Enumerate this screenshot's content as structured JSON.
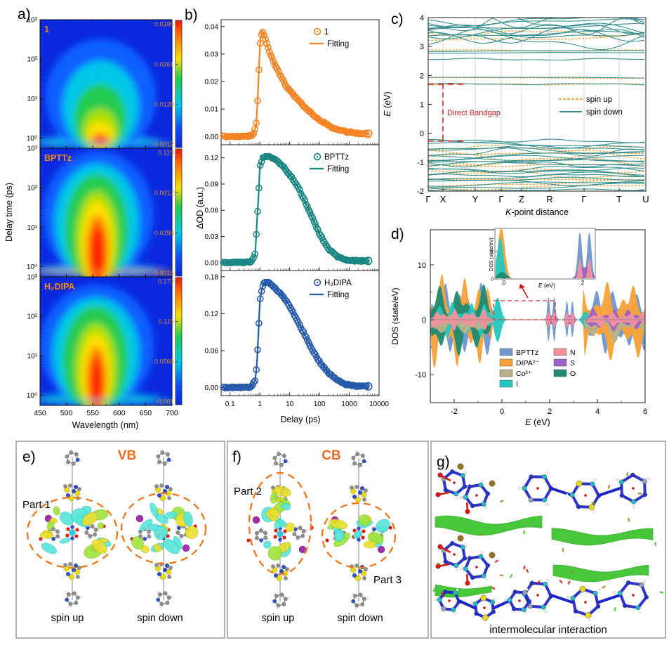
{
  "figure": {
    "letters": {
      "a": "a)",
      "b": "b)",
      "c": "c)",
      "d": "d)",
      "e": "e)",
      "f": "f)",
      "g": "g)"
    }
  },
  "colors": {
    "accent_orange": "#ff8a00",
    "annotation_red": "#cc2222",
    "heat_background": "#0a28e0"
  },
  "chart_data": [
    {
      "id": "a",
      "type": "heatmap",
      "xlabel": "Wavelength (nm)",
      "ylabel": "Delay time (ps)",
      "x_ticks": [
        450,
        500,
        550,
        600,
        650,
        700
      ],
      "y_ticks": [
        "10⁰",
        "10¹",
        "10²",
        "10³"
      ],
      "colormap": [
        "#0a28e0",
        "#00c8e8",
        "#20cc50",
        "#ffe000",
        "#ff8000",
        "#ff2000"
      ],
      "signal_center_nm": 563,
      "panels": [
        {
          "title": "1",
          "colorbar_ticks": [
            "0.0396",
            "0.0261",
            "0.0125",
            "-0.0012"
          ]
        },
        {
          "title": "BPTTz",
          "colorbar_ticks": [
            "0.123",
            "0.0812",
            "0.0398",
            "-0.0015"
          ]
        },
        {
          "title": "H₂DIPA",
          "colorbar_ticks": [
            "0.173",
            "0.115",
            "0.0568",
            "-0.001"
          ]
        }
      ]
    },
    {
      "id": "b",
      "type": "scatter-line",
      "xlabel": "Delay (ps)",
      "ylabel": "ΔOD (a.u.)",
      "x_ticks": [
        "0.1",
        "1",
        "10",
        "100",
        "1000",
        "10000"
      ],
      "panels": [
        {
          "name": "1",
          "fit_label": "Fitting",
          "color": "#f58220",
          "y_ticks": [
            0,
            0.01,
            0.02,
            0.03,
            0.04
          ],
          "ylim": [
            -0.003,
            0.0425
          ],
          "points": [
            [
              0.05,
              0
            ],
            [
              0.3,
              0
            ],
            [
              0.6,
              0.0005
            ],
            [
              0.75,
              0.004
            ],
            [
              0.85,
              0.014
            ],
            [
              0.95,
              0.027
            ],
            [
              1.05,
              0.0355
            ],
            [
              1.2,
              0.0385
            ],
            [
              1.5,
              0.036
            ],
            [
              2,
              0.0315
            ],
            [
              3,
              0.0265
            ],
            [
              5,
              0.022
            ],
            [
              8,
              0.018
            ],
            [
              15,
              0.0145
            ],
            [
              30,
              0.011
            ],
            [
              60,
              0.008
            ],
            [
              120,
              0.0055
            ],
            [
              300,
              0.003
            ],
            [
              700,
              0.0018
            ],
            [
              2000,
              0.0012
            ],
            [
              4500,
              0.001
            ]
          ]
        },
        {
          "name": "BPTTz",
          "fit_label": "Fitting",
          "color": "#17857f",
          "y_ticks": [
            0,
            0.03,
            0.06,
            0.09,
            0.12
          ],
          "ylim": [
            -0.009,
            0.135
          ],
          "points": [
            [
              0.05,
              0
            ],
            [
              0.5,
              0.0005
            ],
            [
              0.7,
              0.01
            ],
            [
              0.8,
              0.047
            ],
            [
              0.9,
              0.075
            ],
            [
              1.0,
              0.11
            ],
            [
              1.3,
              0.121
            ],
            [
              2,
              0.122
            ],
            [
              3,
              0.119
            ],
            [
              5,
              0.113
            ],
            [
              8,
              0.105
            ],
            [
              12,
              0.097
            ],
            [
              20,
              0.085
            ],
            [
              35,
              0.068
            ],
            [
              60,
              0.05
            ],
            [
              100,
              0.033
            ],
            [
              200,
              0.016
            ],
            [
              400,
              0.007
            ],
            [
              800,
              0.003
            ],
            [
              2000,
              0.002
            ],
            [
              4500,
              0.002
            ]
          ]
        },
        {
          "name": "H₂DIPA",
          "fit_label": "Fitting",
          "color": "#2458a8",
          "y_ticks": [
            0,
            0.06,
            0.12,
            0.18
          ],
          "ylim": [
            -0.013,
            0.19
          ],
          "points": [
            [
              0.05,
              0
            ],
            [
              0.5,
              0.001
            ],
            [
              0.7,
              0.012
            ],
            [
              0.8,
              0.04
            ],
            [
              0.9,
              0.09
            ],
            [
              1.0,
              0.14
            ],
            [
              1.2,
              0.163
            ],
            [
              1.5,
              0.172
            ],
            [
              2,
              0.17
            ],
            [
              3,
              0.163
            ],
            [
              5,
              0.152
            ],
            [
              8,
              0.14
            ],
            [
              12,
              0.125
            ],
            [
              20,
              0.105
            ],
            [
              35,
              0.082
            ],
            [
              60,
              0.06
            ],
            [
              100,
              0.042
            ],
            [
              200,
              0.024
            ],
            [
              400,
              0.012
            ],
            [
              800,
              0.005
            ],
            [
              2000,
              0.002
            ],
            [
              4500,
              0.002
            ]
          ]
        }
      ]
    },
    {
      "id": "c",
      "type": "line",
      "xlabel_italic": "K",
      "xlabel_rest": "-point distance",
      "ylabel_italic": "E",
      "ylabel_rest": " (eV)",
      "ylim": [
        -2,
        4
      ],
      "y_ticks": [
        -2,
        -1,
        0,
        1,
        2,
        3,
        4
      ],
      "x_ticks": [
        "Γ",
        "X",
        "Y",
        "Γ",
        "Z",
        "R",
        "Γ",
        "T",
        "U"
      ],
      "legend": [
        "spin up",
        "spin down"
      ],
      "series_colors": {
        "spin_up": "#f0a030",
        "spin_down": "#2e8b8b"
      },
      "annotation": "Direct Bandgap",
      "band_data": {
        "valence_band_max_eV": -0.27,
        "conduction_band_min_eV": 1.7,
        "direct_bandgap_eV": 1.97,
        "bandgap_at": "X",
        "flat_conduction_bands_eV": [
          1.7,
          1.93,
          2.55,
          2.78,
          2.85
        ],
        "dense_valence_range_eV": [
          -2.0,
          -0.35
        ],
        "upper_conduction_range_eV": [
          3.2,
          4.0
        ]
      }
    },
    {
      "id": "d",
      "type": "area",
      "xlabel_italic": "E",
      "xlabel_rest": " (eV)",
      "ylabel": "DOS (state/eV)",
      "xlim": [
        -3,
        6
      ],
      "x_ticks": [
        -2,
        0,
        2,
        4,
        6
      ],
      "y_ticks": [
        10,
        0,
        -10
      ],
      "legend": [
        {
          "label": "BPTTz",
          "color": "#6f97cc"
        },
        {
          "label": "DIPA²⁻",
          "color": "#f9a13a"
        },
        {
          "label": "Co²⁺",
          "color": "#b7b286"
        },
        {
          "label": "I",
          "color": "#25c8c0"
        },
        {
          "label": "N",
          "color": "#f2919d"
        },
        {
          "label": "S",
          "color": "#9d62c6"
        },
        {
          "label": "O",
          "color": "#208a70"
        }
      ],
      "features": {
        "gap_range_eV": [
          0.1,
          1.8
        ],
        "vbm_peak": {
          "E": -0.1,
          "species": [
            "DIPA²⁻",
            "I"
          ]
        },
        "cbm_twin_peaks": {
          "E": [
            1.95,
            2.2
          ],
          "species": [
            "BPTTz",
            "N",
            "S"
          ]
        }
      },
      "inset": {
        "ylabel": "DOS (state/eV)",
        "xlabel_italic": "E",
        "xlabel_rest": " (eV)",
        "x_ticks": [
          0,
          2
        ],
        "y_ticks": [
          0,
          2
        ]
      }
    }
  ],
  "panel_e": {
    "label": "VB",
    "part": "Part 1",
    "spin_up": "spin up",
    "spin_down": "spin down"
  },
  "panel_f": {
    "label": "CB",
    "part2": "Part 2",
    "part3": "Part 3",
    "spin_up": "spin up",
    "spin_down": "spin down"
  },
  "panel_g": {
    "caption": "intermolecular interaction"
  }
}
